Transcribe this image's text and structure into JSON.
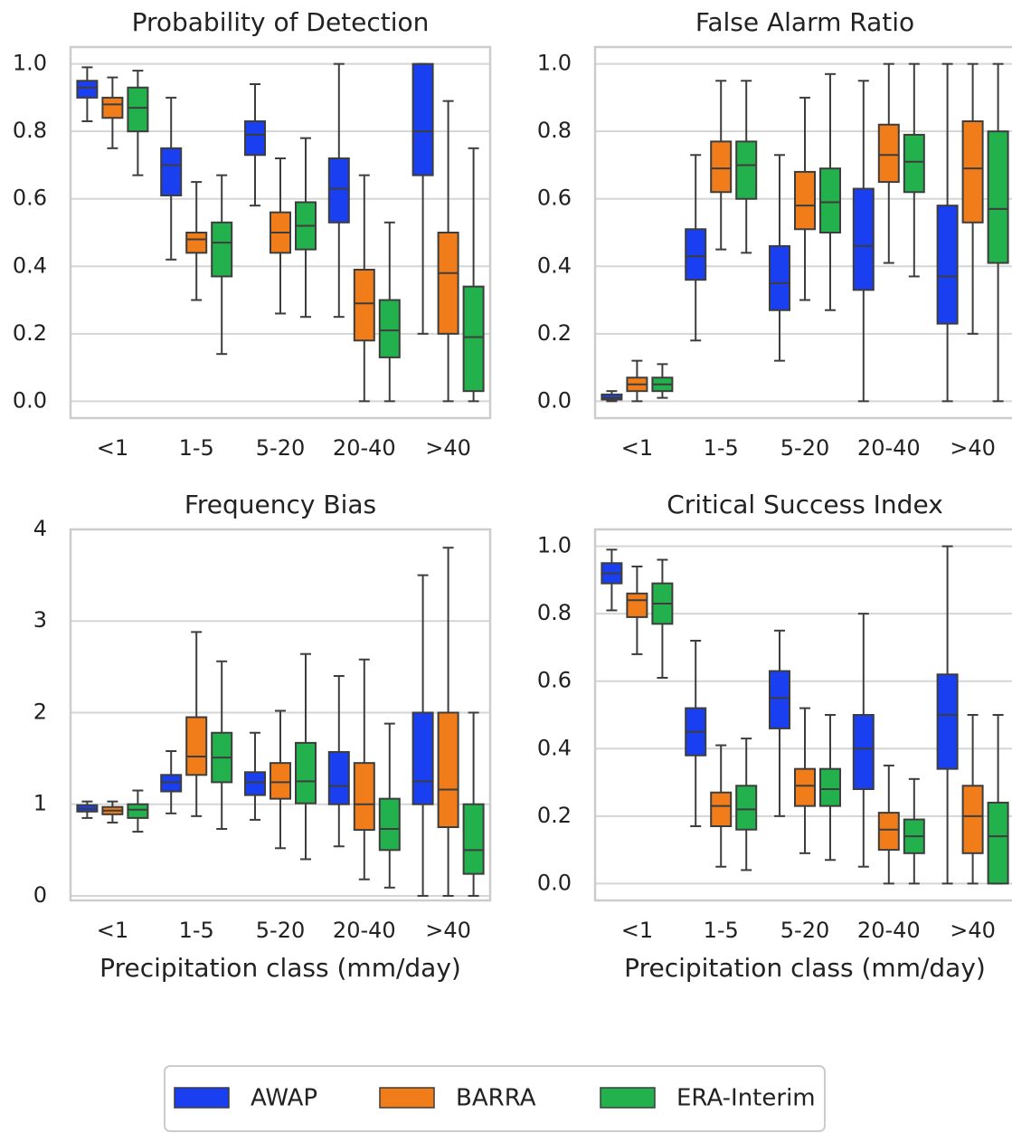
{
  "chart_data": [
    {
      "type": "box",
      "title": "Probability of Detection",
      "categories": [
        "<1",
        "1-5",
        "5-20",
        "20-40",
        ">40"
      ],
      "ylim": [
        -0.05,
        1.05
      ],
      "yticks": [
        {
          "value": 0,
          "label": "0.0"
        },
        0.2,
        0.4,
        0.6,
        0.8,
        {
          "value": 1,
          "label": "1.0"
        }
      ],
      "grid": true,
      "series": [
        {
          "name": "AWAP",
          "color": "#1a3ff0",
          "values": [
            [
              0.83,
              0.9,
              0.93,
              0.95,
              0.99
            ],
            [
              0.42,
              0.61,
              0.7,
              0.75,
              0.9
            ],
            [
              0.58,
              0.73,
              0.79,
              0.83,
              0.94
            ],
            [
              0.25,
              0.53,
              0.63,
              0.72,
              1.0
            ],
            [
              0.2,
              0.67,
              0.8,
              1.0,
              1.0
            ]
          ]
        },
        {
          "name": "BARRA",
          "color": "#f07d1a",
          "values": [
            [
              0.75,
              0.84,
              0.88,
              0.9,
              0.96
            ],
            [
              0.3,
              0.44,
              0.48,
              0.5,
              0.65
            ],
            [
              0.26,
              0.44,
              0.5,
              0.56,
              0.72
            ],
            [
              0.0,
              0.18,
              0.29,
              0.39,
              0.67
            ],
            [
              0.0,
              0.2,
              0.38,
              0.5,
              0.89
            ]
          ]
        },
        {
          "name": "ERA-Interim",
          "color": "#22b14c",
          "values": [
            [
              0.67,
              0.8,
              0.87,
              0.93,
              0.98
            ],
            [
              0.14,
              0.37,
              0.47,
              0.53,
              0.67
            ],
            [
              0.25,
              0.45,
              0.52,
              0.59,
              0.78
            ],
            [
              0.0,
              0.13,
              0.21,
              0.3,
              0.53
            ],
            [
              0.0,
              0.03,
              0.19,
              0.34,
              0.75
            ]
          ]
        }
      ]
    },
    {
      "type": "box",
      "title": "False Alarm Ratio",
      "categories": [
        "<1",
        "1-5",
        "5-20",
        "20-40",
        ">40"
      ],
      "ylim": [
        -0.05,
        1.05
      ],
      "yticks": [
        {
          "value": 0,
          "label": "0.0"
        },
        0.2,
        0.4,
        0.6,
        0.8,
        {
          "value": 1,
          "label": "1.0"
        }
      ],
      "grid": true,
      "series": [
        {
          "color": "#1a3ff0",
          "values": [
            [
              0.0,
              0.005,
              0.01,
              0.02,
              0.03
            ],
            [
              0.18,
              0.36,
              0.43,
              0.51,
              0.73
            ],
            [
              0.12,
              0.27,
              0.35,
              0.46,
              0.73
            ],
            [
              0.0,
              0.33,
              0.46,
              0.63,
              0.95
            ],
            [
              0.0,
              0.23,
              0.37,
              0.58,
              1.0
            ]
          ]
        },
        {
          "color": "#f07d1a",
          "values": [
            [
              0.0,
              0.03,
              0.05,
              0.07,
              0.12
            ],
            [
              0.45,
              0.62,
              0.69,
              0.77,
              0.95
            ],
            [
              0.3,
              0.51,
              0.58,
              0.68,
              0.9
            ],
            [
              0.41,
              0.65,
              0.73,
              0.82,
              1.0
            ],
            [
              0.2,
              0.53,
              0.69,
              0.83,
              1.0
            ]
          ]
        },
        {
          "color": "#22b14c",
          "values": [
            [
              0.01,
              0.03,
              0.05,
              0.07,
              0.11
            ],
            [
              0.44,
              0.6,
              0.7,
              0.77,
              0.95
            ],
            [
              0.27,
              0.5,
              0.59,
              0.69,
              0.97
            ],
            [
              0.37,
              0.62,
              0.71,
              0.79,
              1.0
            ],
            [
              0.0,
              0.41,
              0.57,
              0.8,
              1.0
            ]
          ]
        }
      ]
    },
    {
      "type": "box",
      "title": "Frequency Bias",
      "xlabel": "Precipitation class (mm/day)",
      "categories": [
        "<1",
        "1-5",
        "5-20",
        "20-40",
        ">40"
      ],
      "ylim": [
        -0.05,
        4.0
      ],
      "yticks": [
        0,
        1,
        2,
        3,
        4
      ],
      "grid": true,
      "series": [
        {
          "color": "#1a3ff0",
          "values": [
            [
              0.85,
              0.92,
              0.95,
              0.99,
              1.03
            ],
            [
              0.9,
              1.14,
              1.24,
              1.32,
              1.58
            ],
            [
              0.83,
              1.1,
              1.24,
              1.35,
              1.78
            ],
            [
              0.54,
              1.0,
              1.2,
              1.57,
              2.4
            ],
            [
              0.0,
              1.0,
              1.25,
              2.0,
              3.5
            ]
          ]
        },
        {
          "color": "#f07d1a",
          "values": [
            [
              0.8,
              0.89,
              0.93,
              0.97,
              1.03
            ],
            [
              0.87,
              1.32,
              1.52,
              1.95,
              2.88
            ],
            [
              0.52,
              1.06,
              1.24,
              1.45,
              2.02
            ],
            [
              0.18,
              0.72,
              1.0,
              1.45,
              2.58
            ],
            [
              0.0,
              0.75,
              1.16,
              2.0,
              3.8
            ]
          ]
        },
        {
          "color": "#22b14c",
          "values": [
            [
              0.7,
              0.85,
              0.94,
              1.0,
              1.15
            ],
            [
              0.73,
              1.24,
              1.51,
              1.78,
              2.56
            ],
            [
              0.4,
              1.01,
              1.25,
              1.67,
              2.64
            ],
            [
              0.09,
              0.5,
              0.73,
              1.06,
              1.88
            ],
            [
              0.0,
              0.24,
              0.5,
              1.0,
              2.0
            ]
          ]
        }
      ]
    },
    {
      "type": "box",
      "title": "Critical Success Index",
      "xlabel": "Precipitation class (mm/day)",
      "categories": [
        "<1",
        "1-5",
        "5-20",
        "20-40",
        ">40"
      ],
      "ylim": [
        -0.05,
        1.05
      ],
      "yticks": [
        {
          "value": 0,
          "label": "0.0"
        },
        0.2,
        0.4,
        0.6,
        0.8,
        {
          "value": 1,
          "label": "1.0"
        }
      ],
      "grid": true,
      "series": [
        {
          "color": "#1a3ff0",
          "values": [
            [
              0.81,
              0.89,
              0.92,
              0.95,
              0.99
            ],
            [
              0.17,
              0.38,
              0.45,
              0.52,
              0.72
            ],
            [
              0.2,
              0.46,
              0.55,
              0.63,
              0.75
            ],
            [
              0.05,
              0.28,
              0.4,
              0.5,
              0.8
            ],
            [
              0.0,
              0.34,
              0.5,
              0.62,
              1.0
            ]
          ]
        },
        {
          "color": "#f07d1a",
          "values": [
            [
              0.68,
              0.79,
              0.84,
              0.86,
              0.94
            ],
            [
              0.05,
              0.17,
              0.23,
              0.27,
              0.41
            ],
            [
              0.09,
              0.23,
              0.29,
              0.34,
              0.52
            ],
            [
              0.0,
              0.1,
              0.16,
              0.21,
              0.35
            ],
            [
              0.0,
              0.09,
              0.2,
              0.29,
              0.5
            ]
          ]
        },
        {
          "color": "#22b14c",
          "values": [
            [
              0.61,
              0.77,
              0.83,
              0.89,
              0.96
            ],
            [
              0.04,
              0.16,
              0.22,
              0.29,
              0.43
            ],
            [
              0.07,
              0.23,
              0.28,
              0.34,
              0.5
            ],
            [
              0.0,
              0.09,
              0.14,
              0.19,
              0.31
            ],
            [
              0.0,
              0.0,
              0.14,
              0.24,
              0.5
            ]
          ]
        }
      ]
    }
  ]
}
